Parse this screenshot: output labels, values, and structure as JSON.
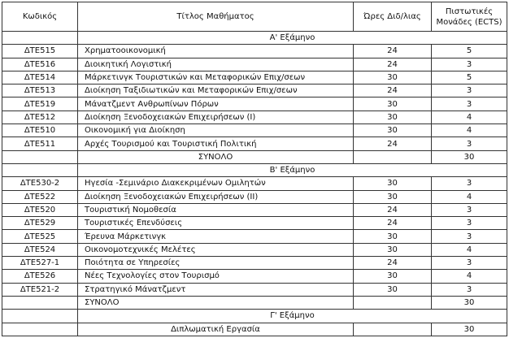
{
  "headers": {
    "code": "Κωδικός",
    "title": "Τίτλος Μαθήματος",
    "hours": "Ώρες Διδ/λιας",
    "ects_line1": "Πιστωτικές",
    "ects_line2": "Μονάδες (ECTS)"
  },
  "semesters": [
    {
      "label": "Α' Εξάμηνο",
      "courses": [
        {
          "code": "ΔΤΕ515",
          "title": "Χρηματοοικονομική",
          "hours": "24",
          "ects": "5"
        },
        {
          "code": "ΔΤΕ516",
          "title": "Διοικητική Λογιστική",
          "hours": "24",
          "ects": "3"
        },
        {
          "code": "ΔΤΕ514",
          "title": "Μάρκετινγκ Τουριστικών και Μεταφορικών Επιχ/σεων",
          "hours": "30",
          "ects": "5"
        },
        {
          "code": "ΔΤΕ513",
          "title": "Διοίκηση Ταξιδιωτικών και Μεταφορικών Επιχ/σεων",
          "hours": "24",
          "ects": "3"
        },
        {
          "code": "ΔΤΕ519",
          "title": "Μάνατζμεντ Ανθρωπίνων Πόρων",
          "hours": "30",
          "ects": "3"
        },
        {
          "code": "ΔΤΕ512",
          "title": "Διοίκηση Ξενοδοχειακών Επιχειρήσεων (Ι)",
          "hours": "30",
          "ects": "4"
        },
        {
          "code": "ΔΤΕ510",
          "title": "Οικονομική για Διοίκηση",
          "hours": "30",
          "ects": "4"
        },
        {
          "code": "ΔΤΕ511",
          "title": "Αρχές Τουρισμού και Τουριστική Πολιτική",
          "hours": "24",
          "ects": "3"
        }
      ],
      "total": {
        "label": "ΣΥΝΟΛΟ",
        "ects": "30",
        "align": "center"
      }
    },
    {
      "label": "Β' Εξάμηνο",
      "courses": [
        {
          "code": "ΔΤΕ530-2",
          "title": "Ηγεσία -Σεμινάριο Διακεκριμένων Ομιλητών",
          "hours": "30",
          "ects": "3"
        },
        {
          "code": "ΔΤΕ522",
          "title": "Διοίκηση Ξενοδοχειακών Επιχειρήσεων (ΙΙ)",
          "hours": "30",
          "ects": "4"
        },
        {
          "code": "ΔΤΕ520",
          "title": "Τουριστική Νομοθεσία",
          "hours": "24",
          "ects": "3"
        },
        {
          "code": "ΔΤΕ529",
          "title": "Τουριστικές Επενδύσεις",
          "hours": "24",
          "ects": "3"
        },
        {
          "code": "ΔΤΕ525",
          "title": "Έρευνα Μάρκετινγκ",
          "hours": "30",
          "ects": "3"
        },
        {
          "code": "ΔΤΕ524",
          "title": "Οικονομοτεχνικές Μελέτες",
          "hours": "30",
          "ects": "4"
        },
        {
          "code": "ΔΤΕ527-1",
          "title": "Ποιότητα σε Υπηρεσίες",
          "hours": "24",
          "ects": "3"
        },
        {
          "code": "ΔΤΕ526",
          "title": "Νέες Τεχνολογίες στον Τουρισμό",
          "hours": "30",
          "ects": "4"
        },
        {
          "code": "ΔΤΕ521-2",
          "title": "Στρατηγικό Μάνατζμεντ",
          "hours": "30",
          "ects": "3"
        }
      ],
      "total": {
        "label": "ΣΥΝΟΛΟ",
        "ects": "30",
        "align": "left"
      }
    },
    {
      "label": "Γ' Εξάμηνο",
      "courses": [],
      "total": {
        "label": "Διπλωματική Εργασία",
        "ects": "30",
        "align": "center"
      }
    }
  ]
}
